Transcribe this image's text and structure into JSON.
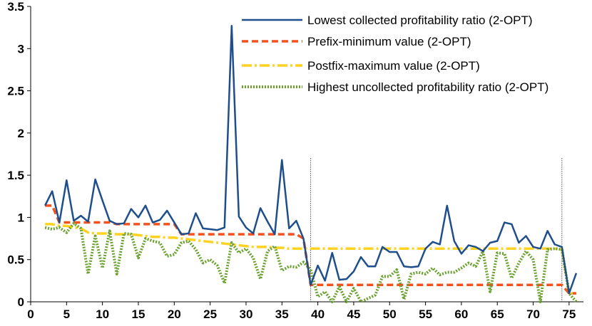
{
  "chart_data": {
    "type": "line",
    "title": "",
    "xlabel": "",
    "ylabel": "",
    "xlim": [
      0,
      77
    ],
    "ylim": [
      0,
      3.5
    ],
    "x_ticks": [
      0,
      5,
      10,
      15,
      20,
      25,
      30,
      35,
      40,
      45,
      50,
      55,
      60,
      65,
      70,
      75
    ],
    "y_ticks": [
      0,
      0.5,
      1,
      1.5,
      2,
      2.5,
      3,
      3.5
    ],
    "y_tick_labels": [
      "0",
      "0.5",
      "1",
      "1.5",
      "2",
      "2.5",
      "3",
      "3.5"
    ],
    "grid": "none",
    "legend_position": "top-right",
    "vertical_markers": [
      39,
      74
    ],
    "colors": {
      "lowest": "#1f4e8c",
      "prefix": "#f4511e",
      "postfix": "#ffd21f",
      "highest": "#6aa12f",
      "axis": "#000000"
    },
    "x": [
      2,
      3,
      4,
      5,
      6,
      7,
      8,
      9,
      10,
      11,
      12,
      13,
      14,
      15,
      16,
      17,
      18,
      19,
      20,
      21,
      22,
      23,
      24,
      25,
      26,
      27,
      28,
      29,
      30,
      31,
      32,
      33,
      34,
      35,
      36,
      37,
      38,
      39,
      40,
      41,
      42,
      43,
      44,
      45,
      46,
      47,
      48,
      49,
      50,
      51,
      52,
      53,
      54,
      55,
      56,
      57,
      58,
      59,
      60,
      61,
      62,
      63,
      64,
      65,
      66,
      67,
      68,
      69,
      70,
      71,
      72,
      73,
      74,
      75,
      76
    ],
    "series": [
      {
        "name": "Lowest collected profitability ratio (2-OPT)",
        "style": "solid",
        "values": [
          1.14,
          1.31,
          0.94,
          1.44,
          0.96,
          1.02,
          0.95,
          1.45,
          1.2,
          0.96,
          0.92,
          0.93,
          1.1,
          1.0,
          1.14,
          0.94,
          0.97,
          1.08,
          0.94,
          0.8,
          0.81,
          1.05,
          0.87,
          0.86,
          0.85,
          0.88,
          3.27,
          1.01,
          0.88,
          0.81,
          1.11,
          0.95,
          0.8,
          1.68,
          0.87,
          0.96,
          0.75,
          0.2,
          0.43,
          0.25,
          0.58,
          0.26,
          0.27,
          0.36,
          0.53,
          0.42,
          0.42,
          0.65,
          0.59,
          0.59,
          0.42,
          0.41,
          0.42,
          0.63,
          0.71,
          0.68,
          1.14,
          0.72,
          0.57,
          0.67,
          0.65,
          0.6,
          0.7,
          0.72,
          0.94,
          0.92,
          0.7,
          0.78,
          0.65,
          0.63,
          0.84,
          0.68,
          0.65,
          0.1,
          0.34
        ]
      },
      {
        "name": "Prefix-minimum value (2-OPT)",
        "style": "dashed",
        "values": [
          1.14,
          1.14,
          0.94,
          0.94,
          0.94,
          0.94,
          0.94,
          0.94,
          0.94,
          0.94,
          0.92,
          0.92,
          0.92,
          0.92,
          0.92,
          0.92,
          0.92,
          0.92,
          0.92,
          0.8,
          0.8,
          0.8,
          0.8,
          0.8,
          0.8,
          0.8,
          0.8,
          0.8,
          0.8,
          0.8,
          0.8,
          0.8,
          0.8,
          0.8,
          0.8,
          0.8,
          0.75,
          0.2,
          0.2,
          0.2,
          0.2,
          0.2,
          0.2,
          0.2,
          0.2,
          0.2,
          0.2,
          0.2,
          0.2,
          0.2,
          0.2,
          0.2,
          0.2,
          0.2,
          0.2,
          0.2,
          0.2,
          0.2,
          0.2,
          0.2,
          0.2,
          0.2,
          0.2,
          0.2,
          0.2,
          0.2,
          0.2,
          0.2,
          0.2,
          0.2,
          0.2,
          0.2,
          0.2,
          0.1,
          0.1
        ]
      },
      {
        "name": "Postfix-maximum value (2-OPT)",
        "style": "dash-dot",
        "values": [
          0.92,
          0.92,
          0.9,
          0.9,
          0.88,
          0.87,
          0.82,
          0.81,
          0.81,
          0.81,
          0.8,
          0.8,
          0.8,
          0.79,
          0.78,
          0.77,
          0.77,
          0.76,
          0.76,
          0.75,
          0.74,
          0.73,
          0.72,
          0.71,
          0.7,
          0.69,
          0.68,
          0.67,
          0.66,
          0.65,
          0.65,
          0.65,
          0.64,
          0.64,
          0.63,
          0.63,
          0.63,
          0.63,
          0.63,
          0.63,
          0.63,
          0.63,
          0.63,
          0.63,
          0.63,
          0.63,
          0.63,
          0.63,
          0.63,
          0.63,
          0.63,
          0.63,
          0.63,
          0.63,
          0.63,
          0.63,
          0.63,
          0.63,
          0.63,
          0.63,
          0.63,
          0.63,
          0.63,
          0.63,
          0.63,
          0.63,
          0.63,
          0.63,
          0.63,
          0.63,
          0.63,
          0.63,
          0.62,
          0.1,
          0.1
        ]
      },
      {
        "name": "Highest uncollected profitability ratio (2-OPT)",
        "style": "dotted",
        "values": [
          0.88,
          0.86,
          0.88,
          0.82,
          0.93,
          0.87,
          0.33,
          0.78,
          0.4,
          0.84,
          0.33,
          0.81,
          0.8,
          0.52,
          0.75,
          0.72,
          0.7,
          0.54,
          0.56,
          0.7,
          0.72,
          0.62,
          0.46,
          0.5,
          0.43,
          0.22,
          0.7,
          0.58,
          0.63,
          0.52,
          0.27,
          0.6,
          0.66,
          0.37,
          0.42,
          0.41,
          0.47,
          0.38,
          0.06,
          0.12,
          0.0,
          0.18,
          0.0,
          0.16,
          0.0,
          0.04,
          0.08,
          0.3,
          0.3,
          0.38,
          0.03,
          0.33,
          0.35,
          0.33,
          0.4,
          0.32,
          0.35,
          0.35,
          0.4,
          0.46,
          0.42,
          0.6,
          0.12,
          0.58,
          0.57,
          0.28,
          0.46,
          0.6,
          0.5,
          0.0,
          0.62,
          0.63,
          0.62,
          0.1,
          0.0
        ]
      }
    ]
  }
}
